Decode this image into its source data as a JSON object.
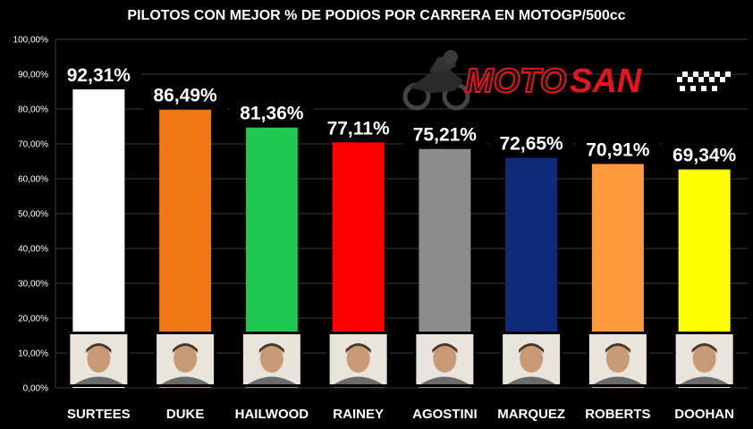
{
  "chart_data": {
    "type": "bar",
    "title": "PILOTOS CON MEJOR % DE PODIOS POR CARRERA EN MOTOGP/500cc",
    "categories": [
      "SURTEES",
      "DUKE",
      "HAILWOOD",
      "RAINEY",
      "AGOSTINI",
      "MARQUEZ",
      "ROBERTS",
      "DOOHAN"
    ],
    "values": [
      92.31,
      86.49,
      81.36,
      77.11,
      75.21,
      72.65,
      70.91,
      69.34
    ],
    "data_labels": [
      "92,31%",
      "86,49%",
      "81,36%",
      "77,11%",
      "75,21%",
      "72,65%",
      "70,91%",
      "69,34%"
    ],
    "bar_colors": [
      "#ffffff",
      "#f07814",
      "#1ec850",
      "#ff0000",
      "#8c8c8c",
      "#0f2a78",
      "#ff9a3c",
      "#ffff00"
    ],
    "ylim": [
      0,
      100
    ],
    "yticks": [
      0,
      10,
      20,
      30,
      40,
      50,
      60,
      70,
      80,
      90,
      100
    ],
    "ytick_labels": [
      "0,00%",
      "10,00%",
      "20,00%",
      "30,00%",
      "40,00%",
      "50,00%",
      "60,00%",
      "70,00%",
      "80,00%",
      "90,00%",
      "100,00%"
    ],
    "grid": true,
    "xlabel": "",
    "ylabel": ""
  },
  "logo": {
    "text_part1": "MOTO",
    "text_part2": "SAN",
    "accent_color": "#e8141c",
    "icon": "motorcycle-rider-icon"
  },
  "rider_photos_icon": "rider-portrait-icon"
}
